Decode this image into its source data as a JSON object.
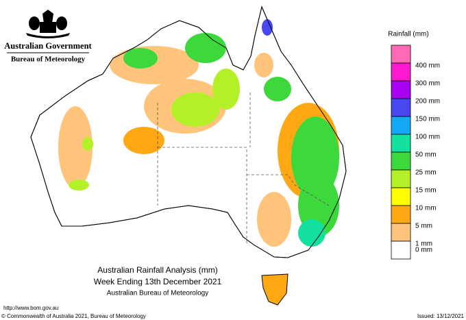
{
  "header": {
    "government": "Australian Government",
    "agency": "Bureau of Meteorology"
  },
  "legend": {
    "title": "Rainfall (mm)",
    "items": [
      {
        "label": "400 mm",
        "color": "#ff6ab4"
      },
      {
        "label": "300 mm",
        "color": "#ff1ad0"
      },
      {
        "label": "200 mm",
        "color": "#a800f0"
      },
      {
        "label": "150 mm",
        "color": "#4848f0"
      },
      {
        "label": "100 mm",
        "color": "#14a8f8"
      },
      {
        "label": "50 mm",
        "color": "#14e0a0"
      },
      {
        "label": "25 mm",
        "color": "#3cd83c"
      },
      {
        "label": "15 mm",
        "color": "#b4f028"
      },
      {
        "label": "10 mm",
        "color": "#ffff00"
      },
      {
        "label": "5 mm",
        "color": "#ffa814"
      },
      {
        "label": "1 mm",
        "color": "#ffc47c"
      },
      {
        "label": "0 mm",
        "color": "#ffffff"
      }
    ]
  },
  "caption": {
    "title": "Australian Rainfall Analysis (mm)",
    "subtitle": "Week Ending 13th December 2021",
    "source": "Australian Bureau of Meteorology"
  },
  "footer": {
    "url": "http://www.bom.gov.au",
    "copyright": "© Commonwealth of Australia 2021, Bureau of Meteorology",
    "issued": "Issued: 13/12/2021"
  }
}
